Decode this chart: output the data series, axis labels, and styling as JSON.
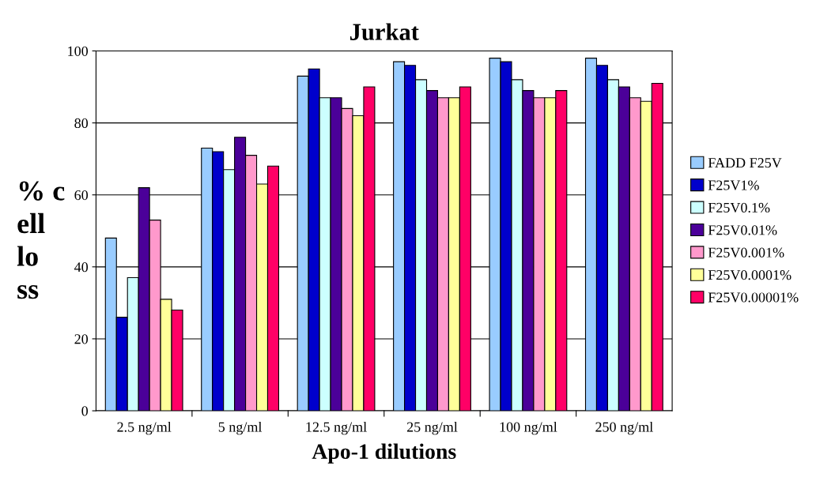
{
  "chart_data": {
    "type": "bar",
    "title": "Jurkat",
    "xlabel": "Apo-1 dilutions",
    "ylabel": "% cell loss",
    "categories": [
      "2.5 ng/ml",
      "5 ng/ml",
      "12.5 ng/ml",
      "25 ng/ml",
      "100 ng/ml",
      "250 ng/ml"
    ],
    "series": [
      {
        "name": "FADD F25V",
        "color": "#99ccff",
        "values": [
          48,
          73,
          93,
          97,
          98,
          98
        ]
      },
      {
        "name": "F25V1%",
        "color": "#0000cc",
        "values": [
          26,
          72,
          95,
          96,
          97,
          96
        ]
      },
      {
        "name": "F25V0.1%",
        "color": "#ccffff",
        "values": [
          37,
          67,
          87,
          92,
          92,
          92
        ]
      },
      {
        "name": "F25V0.01%",
        "color": "#4b0099",
        "values": [
          62,
          76,
          87,
          89,
          89,
          90
        ]
      },
      {
        "name": "F25V0.001%",
        "color": "#ff99cc",
        "values": [
          53,
          71,
          84,
          87,
          87,
          87
        ]
      },
      {
        "name": "F25V0.0001%",
        "color": "#ffff99",
        "values": [
          31,
          63,
          82,
          87,
          87,
          86
        ]
      },
      {
        "name": "F25V0.00001%",
        "color": "#ff0066",
        "values": [
          28,
          68,
          90,
          90,
          89,
          91
        ]
      }
    ],
    "ylim": [
      0,
      100
    ],
    "yticks": [
      0,
      20,
      40,
      60,
      80,
      100
    ],
    "grid": "y",
    "legend": "right"
  }
}
